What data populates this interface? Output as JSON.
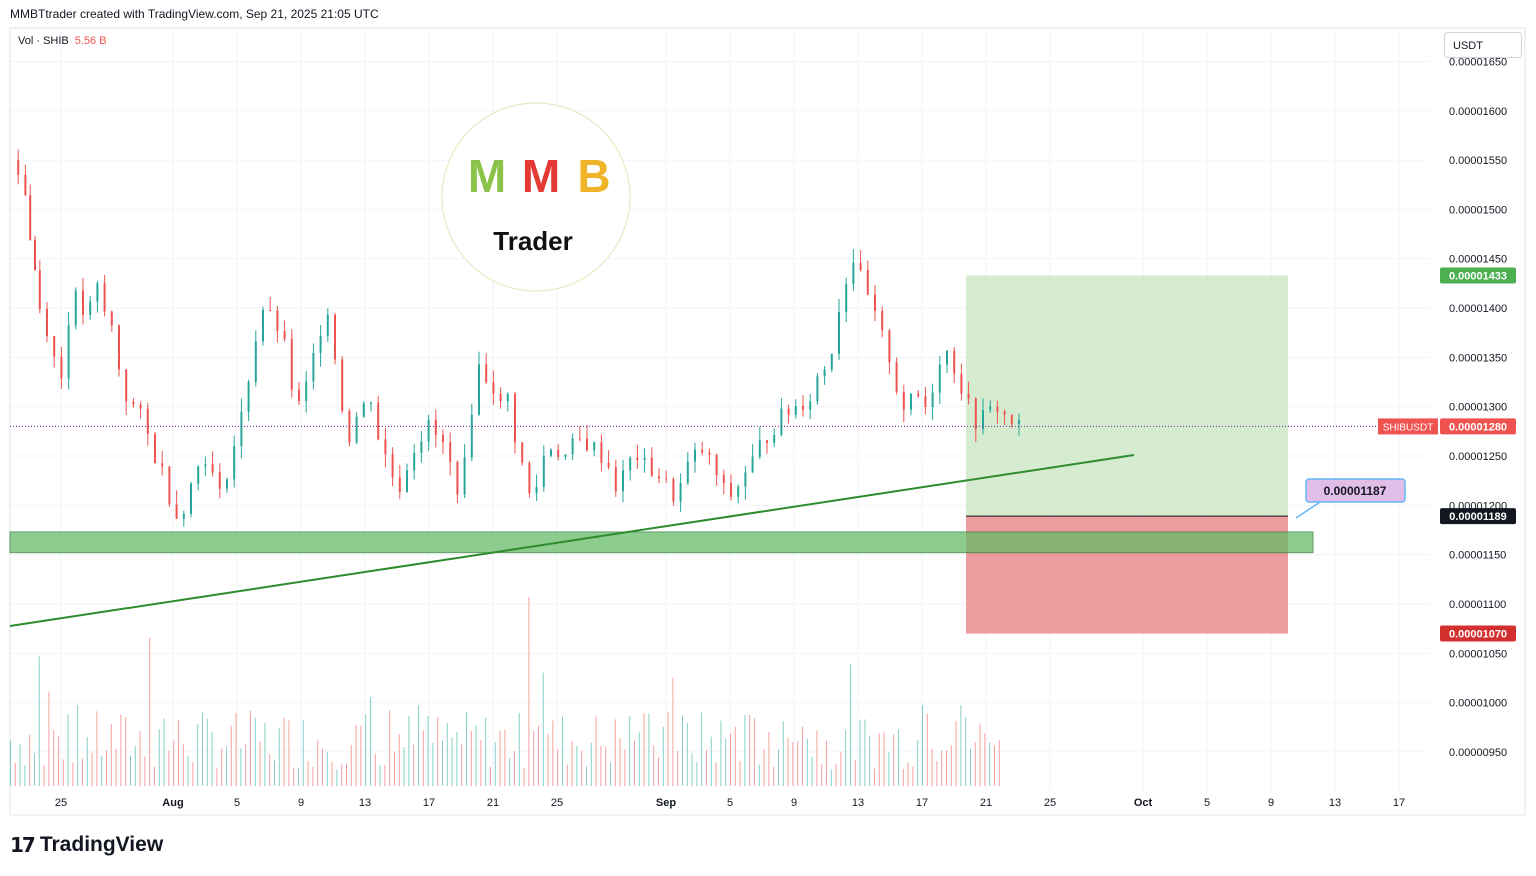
{
  "header": {
    "attribution": "MMBTtrader created with TradingView.com, Sep 21, 2025 21:05 UTC"
  },
  "volume": {
    "label": "Vol · SHIB",
    "value": "5.56 B"
  },
  "currency": "USDT",
  "branding": {
    "footer": "TradingView",
    "watermark_letters": "MMB",
    "watermark_sub": "Trader"
  },
  "colors": {
    "up": "#26a69a",
    "down": "#ef5350",
    "profit_zone": "#c8e6c0",
    "loss_zone": "#e57373",
    "support_zone": "#66bb6a",
    "trendline": "#2e8b2e"
  },
  "chart_data": {
    "type": "candlestick",
    "symbol": "SHIBUSDT",
    "ylim": [
      9.3e-06,
      1.66e-05
    ],
    "y_ticks": [
      "0.00000950",
      "0.00001000",
      "0.00001050",
      "0.00001100",
      "0.00001150",
      "0.00001200",
      "0.00001250",
      "0.00001300",
      "0.00001350",
      "0.00001400",
      "0.00001450",
      "0.00001500",
      "0.00001550",
      "0.00001600",
      "0.00001650"
    ],
    "x_ticks": [
      "25",
      "Aug",
      "5",
      "9",
      "13",
      "17",
      "21",
      "25",
      "Sep",
      "5",
      "9",
      "13",
      "17",
      "21",
      "25",
      "Oct",
      "5",
      "9",
      "13",
      "17"
    ],
    "last_price": "0.00001280",
    "take_profit": "0.00001433",
    "entry": "0.00001189",
    "stop_loss": "0.00001070",
    "annotation": "0.00001187",
    "path": [
      [
        0,
        1550
      ],
      [
        3,
        1540
      ],
      [
        6,
        1520
      ],
      [
        8,
        1470
      ],
      [
        10,
        1440
      ],
      [
        12,
        1400
      ],
      [
        15,
        1380
      ],
      [
        18,
        1350
      ],
      [
        21,
        1330
      ],
      [
        24,
        1390
      ],
      [
        27,
        1410
      ],
      [
        30,
        1395
      ],
      [
        33,
        1400
      ],
      [
        36,
        1420
      ],
      [
        39,
        1395
      ],
      [
        42,
        1380
      ],
      [
        45,
        1340
      ],
      [
        48,
        1310
      ],
      [
        51,
        1300
      ],
      [
        54,
        1290
      ],
      [
        57,
        1270
      ],
      [
        60,
        1250
      ],
      [
        63,
        1235
      ],
      [
        66,
        1210
      ],
      [
        69,
        1190
      ],
      [
        72,
        1200
      ],
      [
        75,
        1220
      ],
      [
        78,
        1240
      ],
      [
        81,
        1250
      ],
      [
        84,
        1230
      ],
      [
        87,
        1210
      ],
      [
        90,
        1235
      ],
      [
        93,
        1260
      ],
      [
        96,
        1290
      ],
      [
        99,
        1330
      ],
      [
        102,
        1370
      ],
      [
        105,
        1400
      ],
      [
        108,
        1390
      ],
      [
        111,
        1380
      ],
      [
        114,
        1360
      ],
      [
        117,
        1320
      ],
      [
        120,
        1300
      ],
      [
        123,
        1320
      ],
      [
        126,
        1350
      ],
      [
        129,
        1380
      ],
      [
        132,
        1400
      ],
      [
        135,
        1350
      ],
      [
        138,
        1300
      ],
      [
        141,
        1270
      ],
      [
        144,
        1290
      ],
      [
        147,
        1300
      ],
      [
        150,
        1310
      ],
      [
        153,
        1270
      ],
      [
        156,
        1250
      ],
      [
        159,
        1230
      ],
      [
        162,
        1220
      ],
      [
        165,
        1240
      ],
      [
        168,
        1260
      ],
      [
        171,
        1270
      ],
      [
        174,
        1280
      ],
      [
        177,
        1270
      ],
      [
        180,
        1260
      ],
      [
        183,
        1240
      ],
      [
        186,
        1220
      ],
      [
        189,
        1240
      ],
      [
        192,
        1300
      ],
      [
        195,
        1340
      ],
      [
        198,
        1330
      ],
      [
        201,
        1320
      ],
      [
        204,
        1300
      ],
      [
        207,
        1310
      ],
      [
        210,
        1270
      ],
      [
        213,
        1240
      ],
      [
        216,
        1210
      ],
      [
        219,
        1220
      ],
      [
        222,
        1250
      ],
      [
        225,
        1260
      ],
      [
        228,
        1255
      ],
      [
        231,
        1250
      ],
      [
        234,
        1260
      ],
      [
        237,
        1265
      ],
      [
        240,
        1262
      ],
      [
        243,
        1258
      ],
      [
        246,
        1250
      ],
      [
        249,
        1240
      ],
      [
        252,
        1220
      ],
      [
        255,
        1230
      ],
      [
        258,
        1245
      ],
      [
        261,
        1250
      ],
      [
        264,
        1240
      ],
      [
        267,
        1235
      ],
      [
        270,
        1230
      ],
      [
        273,
        1220
      ],
      [
        276,
        1210
      ],
      [
        279,
        1220
      ],
      [
        282,
        1240
      ],
      [
        285,
        1250
      ],
      [
        288,
        1255
      ],
      [
        291,
        1245
      ],
      [
        294,
        1230
      ],
      [
        297,
        1215
      ],
      [
        300,
        1210
      ],
      [
        303,
        1220
      ],
      [
        306,
        1235
      ],
      [
        309,
        1245
      ],
      [
        312,
        1260
      ],
      [
        315,
        1270
      ],
      [
        318,
        1280
      ],
      [
        321,
        1290
      ],
      [
        324,
        1295
      ],
      [
        327,
        1300
      ],
      [
        330,
        1305
      ],
      [
        333,
        1310
      ],
      [
        336,
        1330
      ],
      [
        339,
        1340
      ],
      [
        342,
        1360
      ],
      [
        345,
        1400
      ],
      [
        348,
        1430
      ],
      [
        351,
        1450
      ],
      [
        354,
        1430
      ],
      [
        357,
        1410
      ],
      [
        360,
        1390
      ],
      [
        363,
        1370
      ],
      [
        366,
        1350
      ],
      [
        369,
        1320
      ],
      [
        372,
        1300
      ],
      [
        375,
        1305
      ],
      [
        378,
        1310
      ],
      [
        381,
        1300
      ],
      [
        384,
        1320
      ],
      [
        387,
        1350
      ],
      [
        390,
        1355
      ],
      [
        393,
        1340
      ],
      [
        396,
        1320
      ],
      [
        399,
        1300
      ],
      [
        402,
        1285
      ],
      [
        405,
        1290
      ],
      [
        408,
        1295
      ],
      [
        411,
        1300
      ],
      [
        414,
        1290
      ],
      [
        417,
        1285
      ],
      [
        420,
        1280
      ]
    ],
    "volume_bars": [
      [
        1,
        50
      ],
      [
        12,
        48
      ],
      [
        16,
        35
      ],
      [
        28,
        30
      ],
      [
        45,
        40
      ],
      [
        58,
        55
      ],
      [
        64,
        25
      ],
      [
        85,
        40
      ],
      [
        97,
        30
      ],
      [
        117,
        45
      ],
      [
        125,
        60
      ],
      [
        150,
        33
      ],
      [
        158,
        28
      ],
      [
        170,
        30
      ],
      [
        191,
        40
      ],
      [
        216,
        70
      ],
      [
        222,
        42
      ],
      [
        233,
        38
      ],
      [
        258,
        26
      ],
      [
        276,
        40
      ],
      [
        285,
        25
      ],
      [
        302,
        22
      ],
      [
        316,
        20
      ],
      [
        330,
        22
      ],
      [
        350,
        45
      ],
      [
        351,
        50
      ],
      [
        365,
        25
      ],
      [
        380,
        30
      ],
      [
        396,
        30
      ],
      [
        410,
        15
      ]
    ]
  }
}
